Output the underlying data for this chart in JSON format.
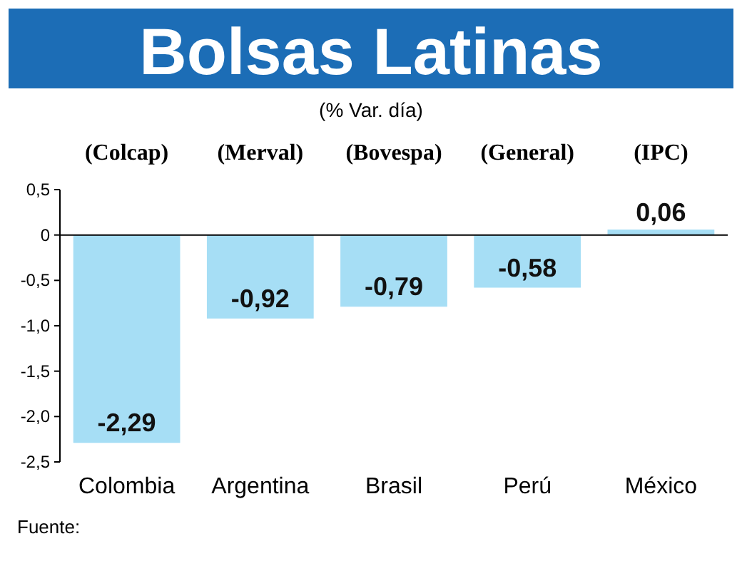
{
  "chart_data": {
    "type": "bar",
    "title": "Bolsas Latinas",
    "subtitle": "(% Var. día)",
    "categories": [
      "Colombia",
      "Argentina",
      "Brasil",
      "Perú",
      "México"
    ],
    "values": [
      -2.29,
      -0.92,
      -0.79,
      -0.58,
      0.06
    ],
    "value_labels": [
      "-2,29",
      "-0,92",
      "-0,79",
      "-0,58",
      "0,06"
    ],
    "color": "#a6def5",
    "ylim": [
      -2.5,
      0.5
    ],
    "yticks": [
      {
        "value": 0.5,
        "label": "0,5"
      },
      {
        "value": 0,
        "label": "0"
      },
      {
        "value": -0.5,
        "label": "-0,5"
      },
      {
        "value": -1,
        "label": "-1,0"
      },
      {
        "value": -1.5,
        "label": "-1,5"
      },
      {
        "value": -2,
        "label": "-2,0"
      },
      {
        "value": -2.5,
        "label": "-2,5"
      }
    ],
    "annotations": [
      "(Colcap)",
      "(Merval)",
      "(Bovespa)",
      "(General)",
      "(IPC)",
      "Fuente:"
    ]
  }
}
